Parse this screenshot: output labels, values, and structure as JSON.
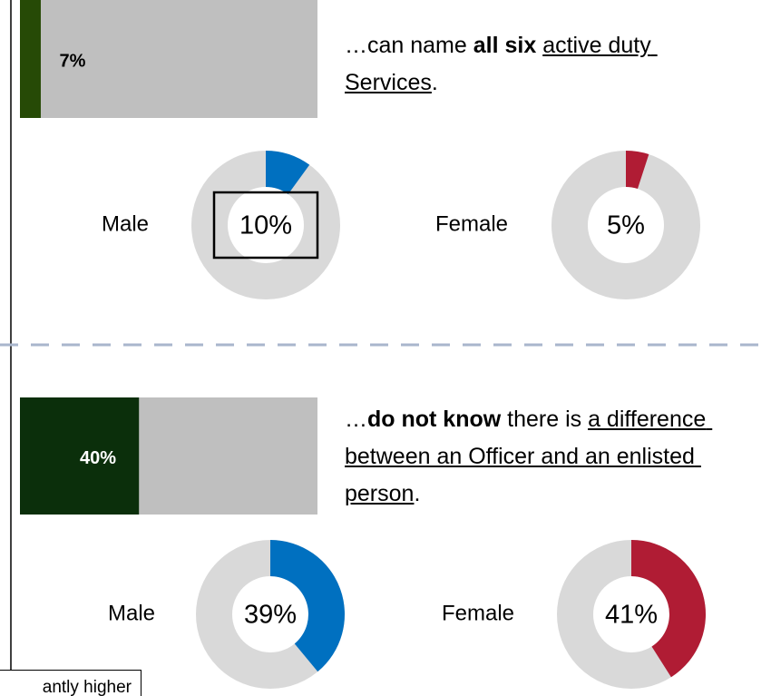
{
  "panels": [
    {
      "bar": {
        "value": 7,
        "label": "7%"
      },
      "statement": [
        {
          "text": "…can name "
        },
        {
          "text": "all six",
          "bold": true
        },
        {
          "text": " "
        },
        {
          "text": "active duty Services",
          "underline": true
        },
        {
          "text": "."
        }
      ],
      "donuts": [
        {
          "name": "Male",
          "value": 10,
          "label": "10%",
          "color": "#0070c0",
          "highlight": true
        },
        {
          "name": "Female",
          "value": 5,
          "label": "5%",
          "color": "#b01c34"
        }
      ]
    },
    {
      "bar": {
        "value": 40,
        "label": "40%"
      },
      "statement": [
        {
          "text": "…"
        },
        {
          "text": "do not know",
          "bold": true
        },
        {
          "text": " there is "
        },
        {
          "text": "a difference between an Officer and an enlisted person",
          "underline": true
        },
        {
          "text": "."
        }
      ],
      "donuts": [
        {
          "name": "Male",
          "value": 39,
          "label": "39%",
          "color": "#0070c0"
        },
        {
          "name": "Female",
          "value": 41,
          "label": "41%",
          "color": "#b01c34"
        }
      ]
    }
  ],
  "bar_colors": [
    "#264a06",
    "#0b2f0b"
  ],
  "note": "antly higher"
}
